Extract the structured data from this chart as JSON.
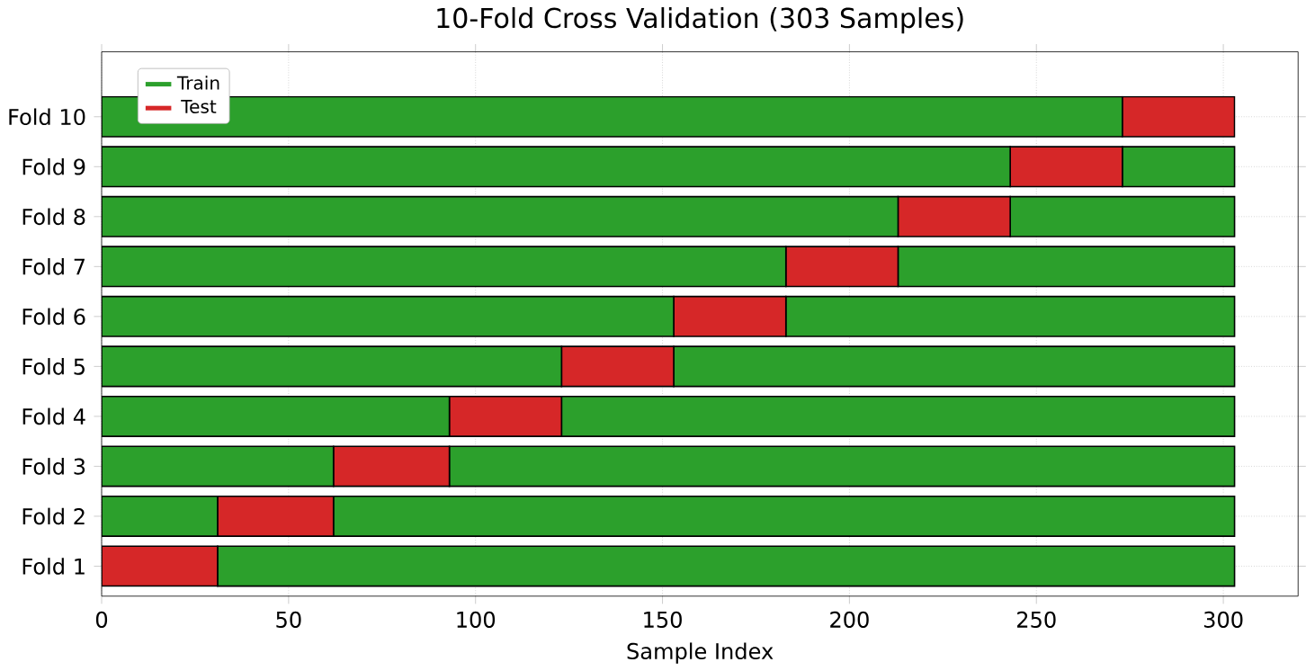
{
  "chart_data": {
    "type": "bar",
    "orientation": "horizontal",
    "stacked": true,
    "title": "10-Fold Cross Validation (303 Samples)",
    "xlabel": "Sample Index",
    "categories": [
      "Fold 10",
      "Fold 9",
      "Fold 8",
      "Fold 7",
      "Fold 6",
      "Fold 5",
      "Fold 4",
      "Fold 3",
      "Fold 2",
      "Fold 1"
    ],
    "series": [
      {
        "name": "Train",
        "color": "#2ca02c",
        "values": [
          273,
          243,
          213,
          183,
          153,
          123,
          93,
          62,
          31,
          0
        ]
      },
      {
        "name": "Test",
        "color": "#d62728",
        "values": [
          30,
          30,
          30,
          30,
          30,
          30,
          30,
          31,
          31,
          31
        ]
      },
      {
        "color": "#2ca02c",
        "values": [
          0,
          30,
          60,
          90,
          120,
          150,
          180,
          210,
          241,
          272
        ]
      }
    ],
    "xlim": [
      0,
      320
    ],
    "xticks": [
      0,
      50,
      100,
      150,
      200,
      250,
      300
    ],
    "grid": true,
    "legend": "top left"
  }
}
